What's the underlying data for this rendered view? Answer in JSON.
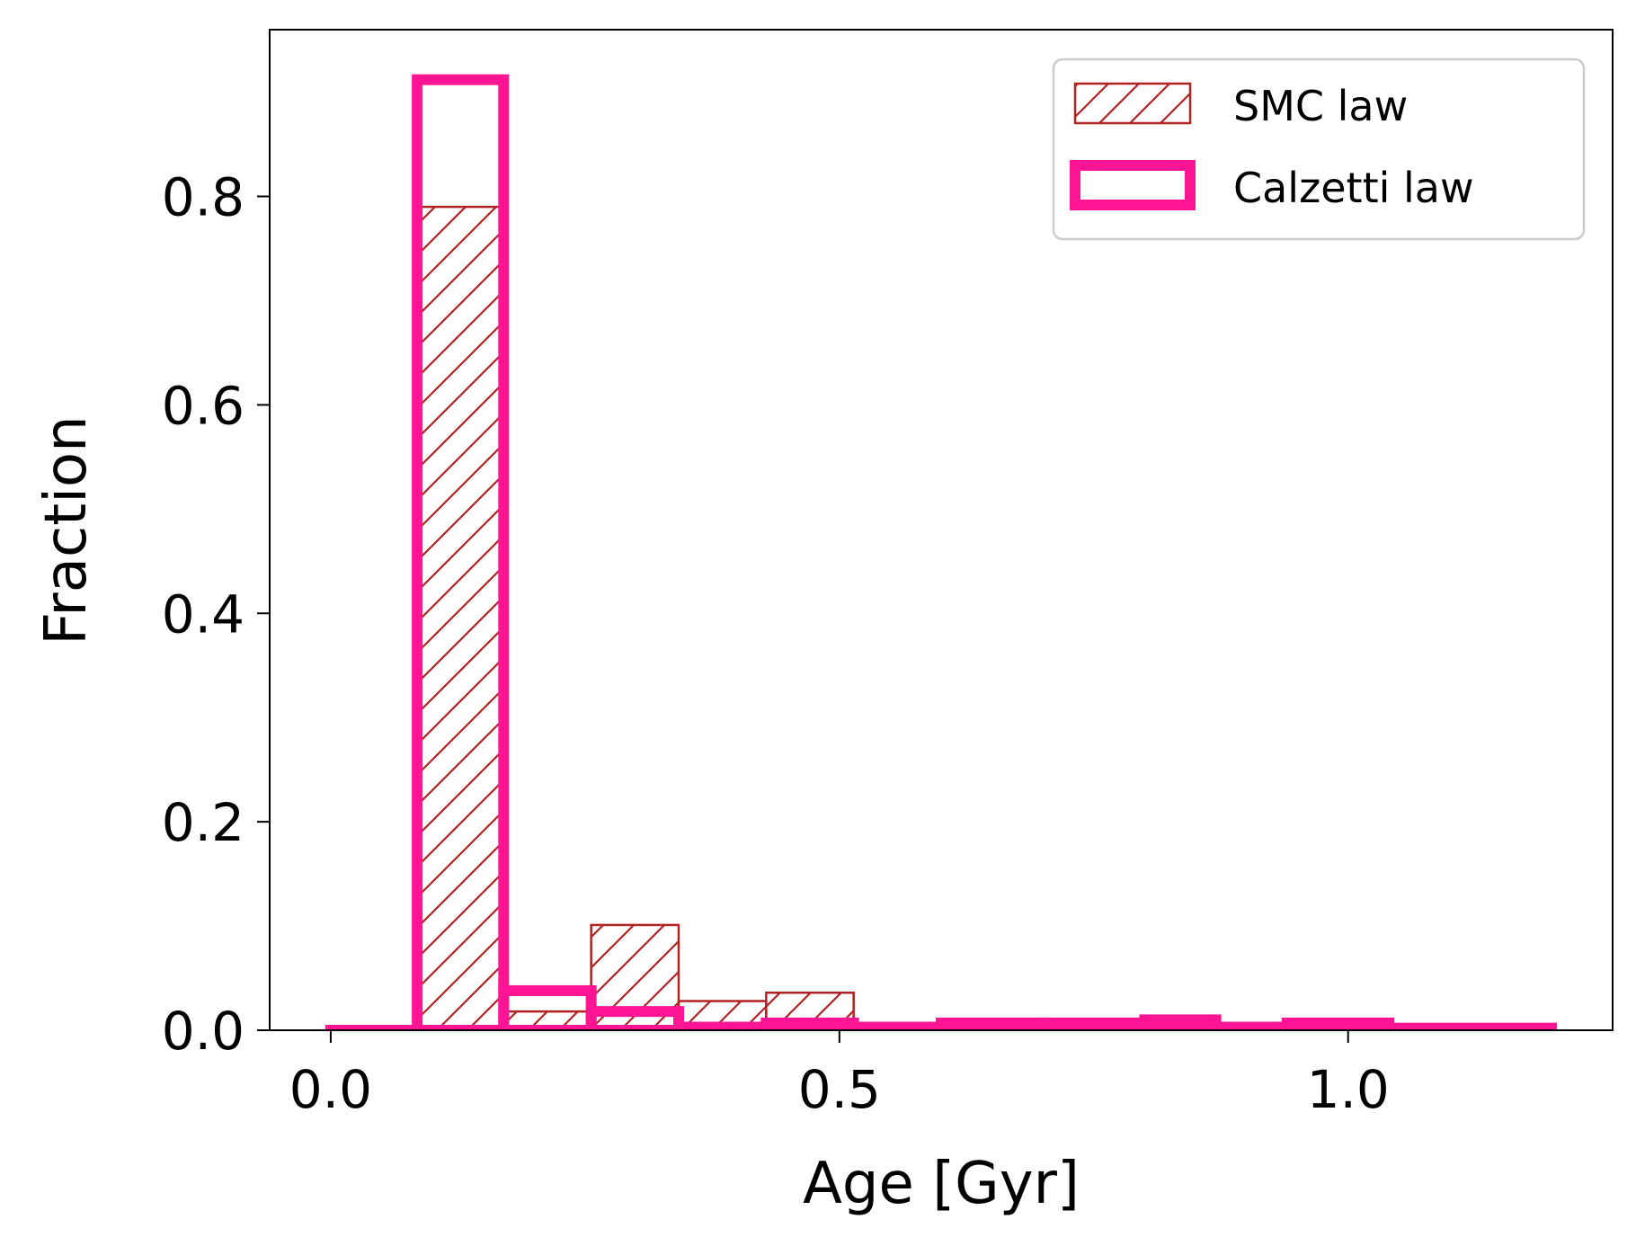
{
  "chart_data": {
    "type": "histogram",
    "xlabel": "Age [Gyr]",
    "ylabel": "Fraction",
    "xlim": [
      -0.06,
      1.26
    ],
    "ylim": [
      0.0,
      0.96
    ],
    "xticks": [
      0.0,
      0.5,
      1.0
    ],
    "xtick_labels": [
      "0.0",
      "0.5",
      "1.0"
    ],
    "yticks": [
      0.0,
      0.2,
      0.4,
      0.6,
      0.8
    ],
    "ytick_labels": [
      "0.0",
      "0.2",
      "0.4",
      "0.6",
      "0.8"
    ],
    "legend_position": "top-right",
    "series": [
      {
        "name": "SMC law",
        "style": "hatched",
        "color": "#b22222",
        "bin_edges": [
          0.085,
          0.17,
          0.256,
          0.342,
          0.428,
          0.514
        ],
        "values": [
          0.79,
          0.018,
          0.101,
          0.028,
          0.036
        ]
      },
      {
        "name": "Calzetti law",
        "style": "step",
        "color": "#ff1493",
        "bin_edges": [
          0.0,
          0.085,
          0.17,
          0.256,
          0.342,
          0.428,
          0.514,
          0.6,
          0.7,
          0.8,
          0.87,
          0.94,
          1.04,
          1.2
        ],
        "values": [
          0.0,
          0.912,
          0.038,
          0.018,
          0.003,
          0.007,
          0.003,
          0.007,
          0.007,
          0.01,
          0.003,
          0.007,
          0.002
        ]
      }
    ]
  }
}
